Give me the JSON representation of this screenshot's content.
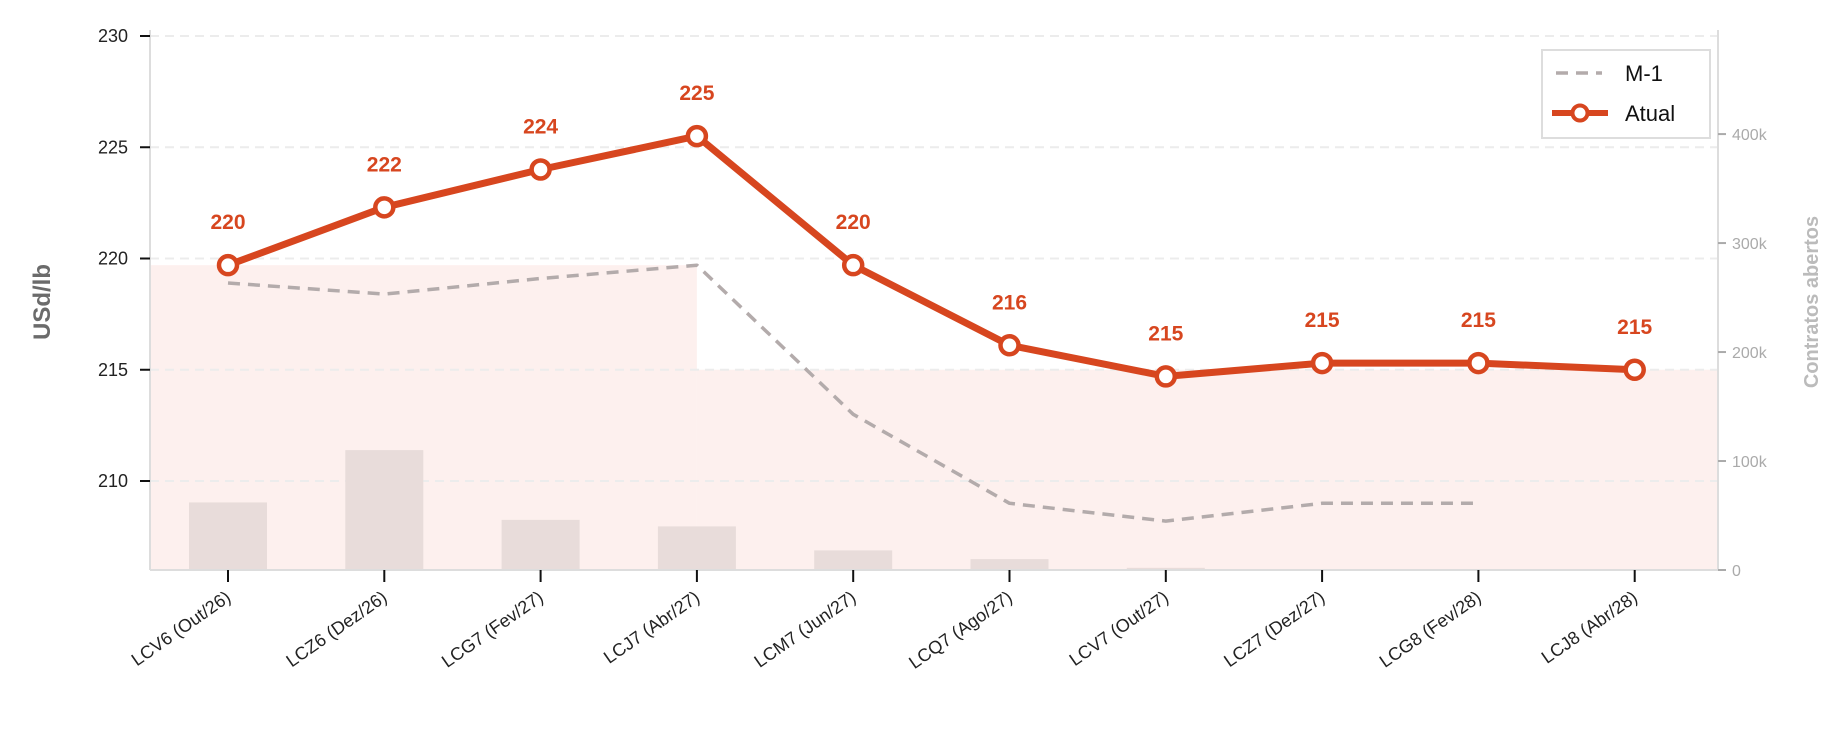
{
  "chart_data": {
    "type": "line",
    "categories": [
      "LCV6 (Out/26)",
      "LCZ6 (Dez/26)",
      "LCG7 (Fev/27)",
      "LCJ7 (Abr/27)",
      "LCM7 (Jun/27)",
      "LCQ7 (Ago/27)",
      "LCV7 (Out/27)",
      "LCZ7 (Dez/27)",
      "LCG8 (Fev/28)",
      "LCJ8 (Abr/28)"
    ],
    "series": [
      {
        "name": "Atual",
        "color": "#d7461f",
        "style": "solid-with-hollow-markers",
        "values": [
          219.7,
          222.3,
          224.0,
          225.5,
          219.7,
          216.1,
          214.7,
          215.3,
          215.3,
          215.0
        ],
        "data_labels": [
          "220",
          "222",
          "224",
          "225",
          "220",
          "216",
          "215",
          "215",
          "215",
          "215"
        ]
      },
      {
        "name": "M-1",
        "color": "#b3abab",
        "style": "dashed",
        "values": [
          218.9,
          218.4,
          219.1,
          219.7,
          213.0,
          209.0,
          208.2,
          209.0,
          209.0,
          null
        ]
      }
    ],
    "bars": {
      "axis": "right",
      "color": "#e8dcda",
      "values": [
        62000,
        110000,
        46000,
        40000,
        18000,
        10000,
        2000,
        0,
        0,
        0
      ]
    },
    "area_fill": {
      "color": "#fdf0ee",
      "segments": [
        {
          "from_index": 0,
          "to_index": 3,
          "y": 219.7
        },
        {
          "from_index": 3,
          "to_index": 9,
          "y": 215.0
        }
      ]
    },
    "ylabel": "USd/lb",
    "ylim": [
      206,
      230
    ],
    "yticks": [
      210,
      215,
      220,
      225,
      230
    ],
    "y2label": "Contratos abertos",
    "y2lim": [
      0,
      490000
    ],
    "y2ticks": [
      0,
      100000,
      200000,
      300000,
      400000
    ],
    "y2ticklabels": [
      "0",
      "100k",
      "200k",
      "300k",
      "400k"
    ],
    "grid": "horizontal-dashed",
    "legend": {
      "position": "top-right",
      "entries": [
        "M-1",
        "Atual"
      ]
    }
  }
}
